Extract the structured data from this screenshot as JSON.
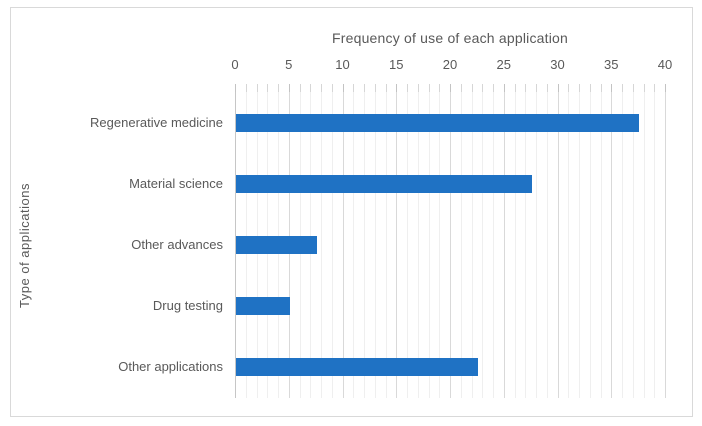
{
  "chart_data": {
    "type": "bar",
    "orientation": "horizontal",
    "title": "Frequency of use of each application",
    "ylabel": "Type of applications",
    "xlabel": "",
    "categories": [
      "Regenerative medicine",
      "Material science",
      "Other advances",
      "Drug testing",
      "Other applications"
    ],
    "values": [
      37.5,
      27.5,
      7.5,
      5,
      22.5
    ],
    "xlim": [
      0,
      40
    ],
    "x_major_ticks": [
      0,
      5,
      10,
      15,
      20,
      25,
      30,
      35,
      40
    ],
    "x_minor_tick_step": 1,
    "grid": "vertical, minor every 1 unit, major every 5 units",
    "legend": "none",
    "colors": {
      "bar": "#1f72c4",
      "text": "#595959",
      "grid_minor": "#efefef",
      "grid_major": "#d9d9d9",
      "axis_line": "#c6c6c6",
      "frame_border": "#d9d9d9",
      "background": "#ffffff"
    }
  }
}
